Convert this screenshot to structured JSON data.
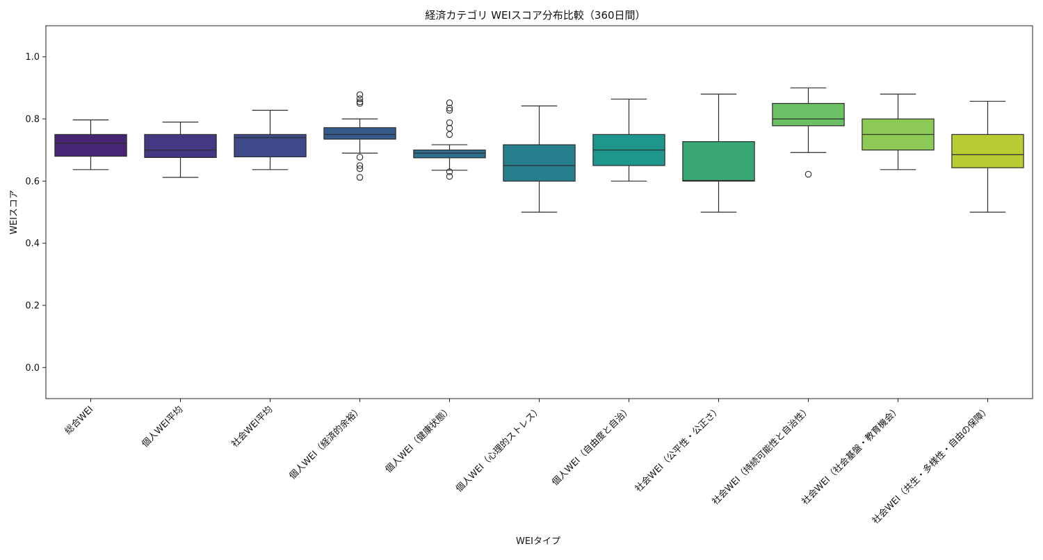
{
  "chart_data": {
    "type": "box",
    "title": "経済カテゴリ WEIスコア分布比較（360日間）",
    "xlabel": "WEIタイプ",
    "ylabel": "WEIスコア",
    "ylim": [
      -0.1,
      1.1
    ],
    "yticks": [
      "0.0",
      "0.2",
      "0.4",
      "0.6",
      "0.8",
      "1.0"
    ],
    "grid": false,
    "boxes": [
      {
        "label": "総合WEI",
        "color": "#482475",
        "whisker_low": 0.637,
        "q1": 0.68,
        "median": 0.722,
        "q3": 0.75,
        "whisker_high": 0.797,
        "outliers": []
      },
      {
        "label": "個人WEI平均",
        "color": "#453781",
        "whisker_low": 0.612,
        "q1": 0.676,
        "median": 0.7,
        "q3": 0.75,
        "whisker_high": 0.79,
        "outliers": []
      },
      {
        "label": "社会WEI平均",
        "color": "#3e4a89",
        "whisker_low": 0.637,
        "q1": 0.678,
        "median": 0.74,
        "q3": 0.75,
        "whisker_high": 0.828,
        "outliers": []
      },
      {
        "label": "個人WEI（経済的余裕）",
        "color": "#365c8d",
        "whisker_low": 0.69,
        "q1": 0.735,
        "median": 0.75,
        "q3": 0.772,
        "whisker_high": 0.8,
        "outliers": [
          0.612,
          0.64,
          0.65,
          0.677,
          0.85,
          0.855,
          0.865,
          0.878
        ]
      },
      {
        "label": "個人WEI（健康状態）",
        "color": "#2e6e8e",
        "whisker_low": 0.635,
        "q1": 0.675,
        "median": 0.69,
        "q3": 0.7,
        "whisker_high": 0.717,
        "outliers": [
          0.615,
          0.63,
          0.75,
          0.77,
          0.788,
          0.828,
          0.835,
          0.852
        ]
      },
      {
        "label": "個人WEI（心理的ストレス）",
        "color": "#277f8e",
        "whisker_low": 0.5,
        "q1": 0.6,
        "median": 0.65,
        "q3": 0.717,
        "whisker_high": 0.842,
        "outliers": []
      },
      {
        "label": "個人WEI（自由度と自治）",
        "color": "#1f968b",
        "whisker_low": 0.6,
        "q1": 0.65,
        "median": 0.7,
        "q3": 0.75,
        "whisker_high": 0.864,
        "outliers": []
      },
      {
        "label": "社会WEI（公平性・公正さ）",
        "color": "#3aa875",
        "whisker_low": 0.5,
        "q1": 0.6,
        "median": 0.602,
        "q3": 0.727,
        "whisker_high": 0.88,
        "outliers": []
      },
      {
        "label": "社会WEI（持続可能性と自治性）",
        "color": "#6cc066",
        "whisker_low": 0.692,
        "q1": 0.778,
        "median": 0.8,
        "q3": 0.85,
        "whisker_high": 0.9,
        "outliers": [
          0.622
        ]
      },
      {
        "label": "社会WEI（社会基盤・教育機会）",
        "color": "#8dc955",
        "whisker_low": 0.637,
        "q1": 0.7,
        "median": 0.75,
        "q3": 0.8,
        "whisker_high": 0.88,
        "outliers": []
      },
      {
        "label": "社会WEI（共生・多様性・自由の保障）",
        "color": "#b8cd33",
        "whisker_low": 0.5,
        "q1": 0.643,
        "median": 0.685,
        "q3": 0.75,
        "whisker_high": 0.857,
        "outliers": []
      }
    ]
  }
}
